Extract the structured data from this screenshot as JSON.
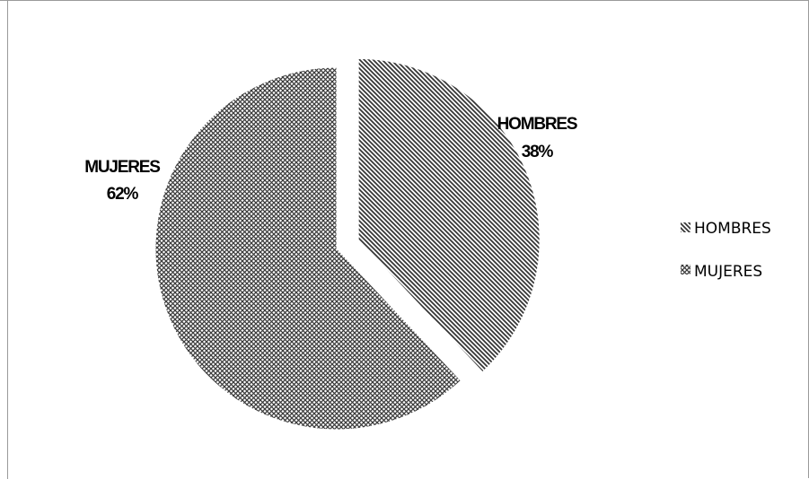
{
  "chart_data": {
    "type": "pie",
    "slices": [
      {
        "label": "HOMBRES",
        "value": 38,
        "exploded": true,
        "pattern": "diagonal-stripes"
      },
      {
        "label": "MUJERES",
        "value": 62,
        "exploded": false,
        "pattern": "checker"
      }
    ],
    "data_labels": [
      {
        "name": "HOMBRES",
        "percent": "38%"
      },
      {
        "name": "MUJERES",
        "percent": "62%"
      }
    ],
    "legend": {
      "placement": "right",
      "items": [
        "HOMBRES",
        "MUJERES"
      ]
    },
    "colors": {
      "ink": "#333333",
      "background": "#ffffff",
      "frame": "#9a9a9a"
    }
  }
}
